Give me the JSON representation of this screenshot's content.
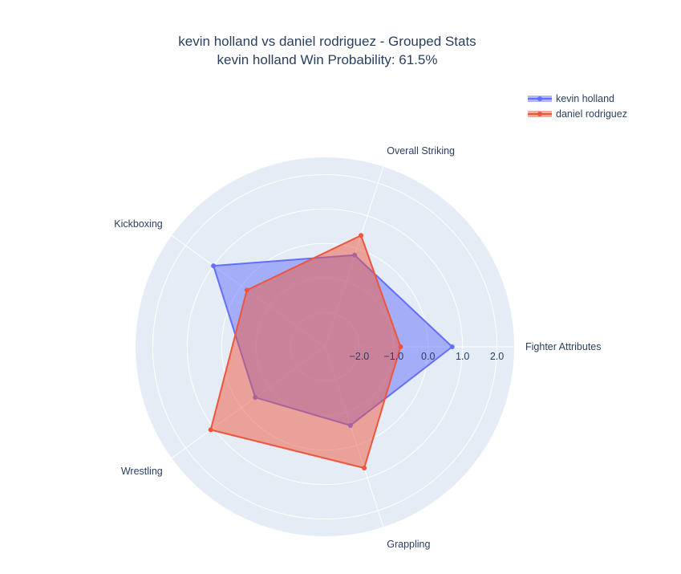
{
  "chart_data": {
    "type": "radar",
    "title": "kevin holland vs daniel rodriguez - Grouped Stats",
    "subtitle": "kevin holland Win Probability: 61.5%",
    "axes": [
      "Fighter Attributes",
      "Overall Striking",
      "Kickboxing",
      "Wrestling",
      "Grappling"
    ],
    "radial_range": [
      -3,
      2.5
    ],
    "radial_ticks": [
      -2,
      -1,
      0,
      1,
      2
    ],
    "radial_tick_labels": [
      "−2.0",
      "−1.0",
      "0.0",
      "1.0",
      "2.0"
    ],
    "series": [
      {
        "name": "kevin holland",
        "color": "#636efa",
        "values": [
          0.7,
          -0.2,
          1.0,
          -0.5,
          -0.6
        ]
      },
      {
        "name": "daniel rodriguez",
        "color": "#ef553b",
        "values": [
          -0.8,
          0.4,
          -0.2,
          1.1,
          0.7
        ]
      }
    ],
    "legend_position": "top-right",
    "background_color": "#e5ecf6",
    "grid": true
  }
}
